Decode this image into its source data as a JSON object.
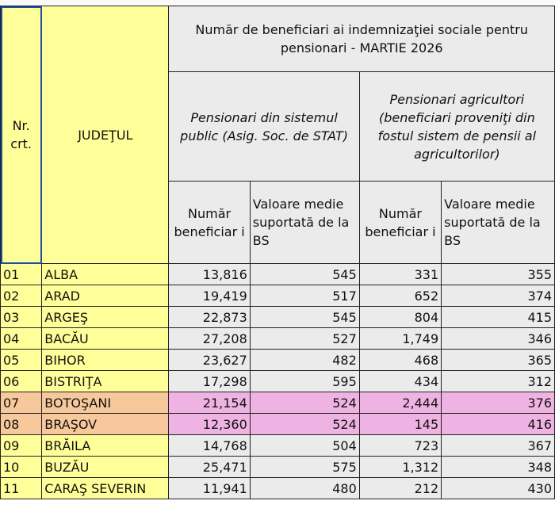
{
  "header": {
    "nr_crt": "Nr. crt.",
    "judet": "JUDEŢUL",
    "title": "Număr de beneficiari ai indemnizaţiei sociale pentru pensionari - MARTIE  2026",
    "group1": "Pensionari din sistemul public (Asig. Soc. de STAT)",
    "group2": "Pensionari agricultori (beneficiari proveniţi din fostul sistem de pensii al agricultorilor)",
    "col_numar": "Număr beneficiar i",
    "col_valoare": "Valoare medie suportată de la BS"
  },
  "rows": [
    {
      "nr": "01",
      "judet": "ALBA",
      "n1": "13,816",
      "v1": "545",
      "n2": "331",
      "v2": "355"
    },
    {
      "nr": "02",
      "judet": "ARAD",
      "n1": "19,419",
      "v1": "517",
      "n2": "652",
      "v2": "374"
    },
    {
      "nr": "03",
      "judet": "ARGEŞ",
      "n1": "22,873",
      "v1": "545",
      "n2": "804",
      "v2": "415"
    },
    {
      "nr": "04",
      "judet": "BACĂU",
      "n1": "27,208",
      "v1": "527",
      "n2": "1,749",
      "v2": "346"
    },
    {
      "nr": "05",
      "judet": "BIHOR",
      "n1": "23,627",
      "v1": "482",
      "n2": "468",
      "v2": "365"
    },
    {
      "nr": "06",
      "judet": "BISTRIŢA",
      "n1": "17,298",
      "v1": "595",
      "n2": "434",
      "v2": "312"
    },
    {
      "nr": "07",
      "judet": "BOTOŞANI",
      "n1": "21,154",
      "v1": "524",
      "n2": "2,444",
      "v2": "376"
    },
    {
      "nr": "08",
      "judet": "BRAŞOV",
      "n1": "12,360",
      "v1": "524",
      "n2": "145",
      "v2": "416"
    },
    {
      "nr": "09",
      "judet": "BRĂILA",
      "n1": "14,768",
      "v1": "504",
      "n2": "723",
      "v2": "367"
    },
    {
      "nr": "10",
      "judet": "BUZĂU",
      "n1": "25,471",
      "v1": "575",
      "n2": "1,312",
      "v2": "348"
    },
    {
      "nr": "11",
      "judet": "CARAŞ SEVERIN",
      "n1": "11,941",
      "v1": "480",
      "n2": "212",
      "v2": "430"
    }
  ],
  "highlight_colors": {
    "label": "#f7c89b",
    "data": "#efb3e3"
  }
}
